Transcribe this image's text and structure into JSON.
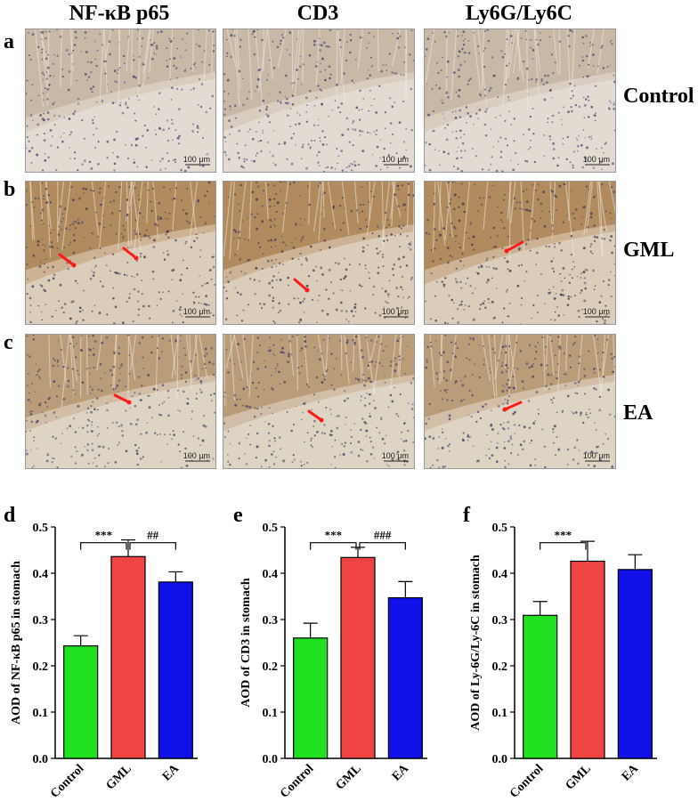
{
  "columns": [
    "NF-κB p65",
    "CD3",
    "Ly6G/Ly6C"
  ],
  "rows": [
    {
      "letter": "a",
      "label": "Control",
      "tone": "control"
    },
    {
      "letter": "b",
      "label": "GML",
      "tone": "gml"
    },
    {
      "letter": "c",
      "label": "EA",
      "tone": "ea"
    }
  ],
  "scale_bar_text": "100 μm",
  "colors": {
    "control": "#20e020",
    "gml": "#f04444",
    "ea": "#1010e8",
    "arrow": "#ff1a1a"
  },
  "chart_data": [
    {
      "letter": "d",
      "type": "bar",
      "categories": [
        "Control",
        "GML",
        "EA"
      ],
      "values": [
        0.243,
        0.436,
        0.381
      ],
      "errors": [
        0.022,
        0.036,
        0.022
      ],
      "ylabel": "AOD of NF-κB p65 in stomach",
      "ylim": [
        0,
        0.5
      ],
      "yticks": [
        "0.0",
        "0.1",
        "0.2",
        "0.3",
        "0.4",
        "0.5"
      ],
      "comparisons": [
        {
          "from": 0,
          "to": 1,
          "label": "***"
        },
        {
          "from": 1,
          "to": 2,
          "label": "##"
        }
      ]
    },
    {
      "letter": "e",
      "type": "bar",
      "categories": [
        "Control",
        "GML",
        "EA"
      ],
      "values": [
        0.26,
        0.434,
        0.347
      ],
      "errors": [
        0.032,
        0.022,
        0.035
      ],
      "ylabel": "AOD of CD3 in stomach",
      "ylim": [
        0,
        0.5
      ],
      "yticks": [
        "0.0",
        "0.1",
        "0.2",
        "0.3",
        "0.4",
        "0.5"
      ],
      "comparisons": [
        {
          "from": 0,
          "to": 1,
          "label": "***"
        },
        {
          "from": 1,
          "to": 2,
          "label": "###"
        }
      ]
    },
    {
      "letter": "f",
      "type": "bar",
      "categories": [
        "Control",
        "GML",
        "EA"
      ],
      "values": [
        0.309,
        0.426,
        0.408
      ],
      "errors": [
        0.03,
        0.043,
        0.032
      ],
      "ylabel": "AOD of Ly-6G/Ly-6C in stomach",
      "ylim": [
        0,
        0.5
      ],
      "yticks": [
        "0.0",
        "0.1",
        "0.2",
        "0.3",
        "0.4",
        "0.5"
      ],
      "comparisons": [
        {
          "from": 0,
          "to": 1,
          "label": "***"
        }
      ]
    }
  ]
}
